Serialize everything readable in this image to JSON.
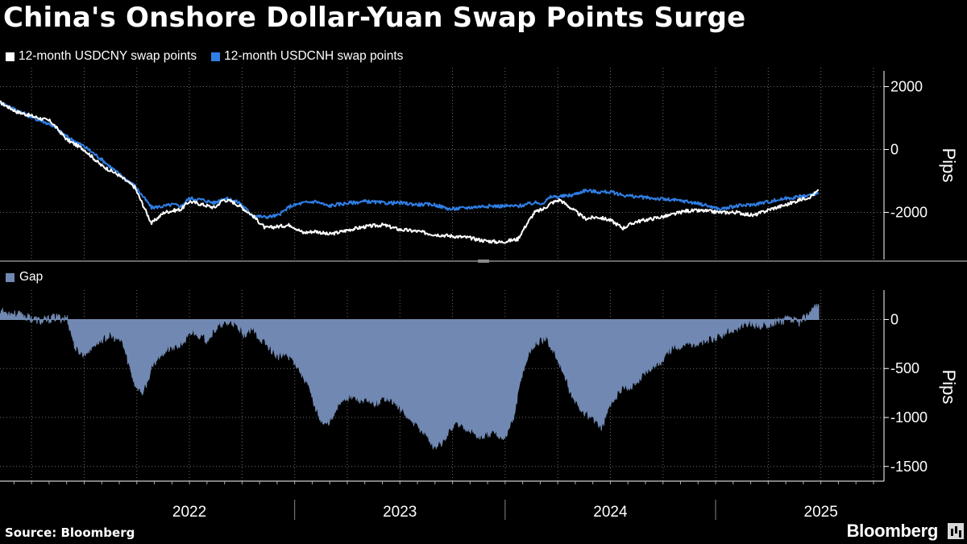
{
  "title": "China's Onshore Dollar-Yuan Swap Points Surge",
  "source": "Source: Bloomberg",
  "brand": "Bloomberg",
  "colors": {
    "cny": "#ffffff",
    "cnh": "#2f7fe6",
    "gap": "#7189b2",
    "grid": "#6e6e6e",
    "background": "#000000"
  },
  "chart_data": [
    {
      "type": "line",
      "title": "China's Onshore Dollar-Yuan Swap Points Surge",
      "ylabel": "Pips",
      "ylim": [
        -3500,
        2500
      ],
      "yticks": [
        2000,
        0,
        -2000
      ],
      "ytick_labels": [
        "2000",
        "0",
        "-2000"
      ],
      "x_label_years": [
        "2022",
        "2023",
        "2024",
        "2025"
      ],
      "x_range": [
        2021.6,
        2025.8
      ],
      "legend": [
        "12-month USDCNY swap points",
        "12-month USDCNH swap points"
      ],
      "series": [
        {
          "name": "12-month USDCNY swap points",
          "x": [
            2021.6,
            2021.68,
            2021.76,
            2021.84,
            2021.92,
            2022.0,
            2022.08,
            2022.16,
            2022.24,
            2022.32,
            2022.38,
            2022.42,
            2022.46,
            2022.5,
            2022.56,
            2022.62,
            2022.66,
            2022.7,
            2022.74,
            2022.8,
            2022.86,
            2022.92,
            2022.98,
            2023.04,
            2023.1,
            2023.16,
            2023.2,
            2023.26,
            2023.34,
            2023.42,
            2023.5,
            2023.58,
            2023.66,
            2023.74,
            2023.82,
            2023.9,
            2023.98,
            2024.06,
            2024.1,
            2024.14,
            2024.18,
            2024.22,
            2024.26,
            2024.32,
            2024.38,
            2024.44,
            2024.5,
            2024.56,
            2024.62,
            2024.7,
            2024.78,
            2024.86,
            2024.94,
            2025.02,
            2025.1,
            2025.18,
            2025.26,
            2025.34,
            2025.4,
            2025.45,
            2025.49
          ],
          "values": [
            1500,
            1200,
            1050,
            900,
            300,
            0,
            -500,
            -800,
            -1200,
            -2350,
            -2000,
            -1950,
            -1900,
            -1650,
            -1750,
            -1850,
            -1600,
            -1650,
            -1800,
            -2100,
            -2500,
            -2450,
            -2400,
            -2650,
            -2600,
            -2700,
            -2650,
            -2550,
            -2450,
            -2400,
            -2550,
            -2600,
            -2700,
            -2750,
            -2800,
            -2900,
            -2950,
            -2850,
            -2400,
            -2000,
            -1900,
            -1700,
            -1600,
            -1900,
            -2200,
            -2150,
            -2250,
            -2500,
            -2300,
            -2200,
            -2100,
            -1950,
            -1950,
            -2000,
            -2000,
            -2100,
            -1900,
            -1750,
            -1600,
            -1500,
            -1300
          ]
        },
        {
          "name": "12-month USDCNH swap points",
          "x": [
            2021.6,
            2021.68,
            2021.76,
            2021.84,
            2021.92,
            2022.0,
            2022.08,
            2022.16,
            2022.24,
            2022.32,
            2022.38,
            2022.42,
            2022.46,
            2022.5,
            2022.56,
            2022.62,
            2022.66,
            2022.7,
            2022.74,
            2022.8,
            2022.86,
            2022.92,
            2022.98,
            2023.04,
            2023.1,
            2023.16,
            2023.2,
            2023.26,
            2023.34,
            2023.42,
            2023.5,
            2023.58,
            2023.66,
            2023.74,
            2023.82,
            2023.9,
            2023.98,
            2024.06,
            2024.1,
            2024.14,
            2024.18,
            2024.22,
            2024.26,
            2024.32,
            2024.38,
            2024.44,
            2024.5,
            2024.56,
            2024.62,
            2024.7,
            2024.78,
            2024.86,
            2024.94,
            2025.02,
            2025.1,
            2025.18,
            2025.26,
            2025.34,
            2025.4,
            2025.45,
            2025.49
          ],
          "values": [
            1500,
            1250,
            1000,
            800,
            400,
            100,
            -300,
            -750,
            -1150,
            -1850,
            -1800,
            -1750,
            -1800,
            -1550,
            -1600,
            -1700,
            -1550,
            -1600,
            -1700,
            -2100,
            -2150,
            -2100,
            -1800,
            -1700,
            -1650,
            -1800,
            -1750,
            -1700,
            -1650,
            -1700,
            -1700,
            -1750,
            -1750,
            -1900,
            -1850,
            -1800,
            -1800,
            -1800,
            -1750,
            -1700,
            -1700,
            -1500,
            -1500,
            -1450,
            -1300,
            -1350,
            -1350,
            -1450,
            -1500,
            -1550,
            -1600,
            -1650,
            -1750,
            -1900,
            -1800,
            -1750,
            -1650,
            -1550,
            -1500,
            -1450,
            -1400
          ]
        }
      ]
    },
    {
      "type": "area",
      "ylabel": "Pips",
      "ylim": [
        -1650,
        300
      ],
      "yticks": [
        0,
        -500,
        -1000,
        -1500
      ],
      "ytick_labels": [
        "0",
        "-500",
        "-1000",
        "-1500"
      ],
      "x_range": [
        2021.6,
        2025.8
      ],
      "legend": [
        "Gap"
      ],
      "series": [
        {
          "name": "Gap",
          "x": [
            2021.6,
            2021.7,
            2021.8,
            2021.86,
            2021.92,
            2021.96,
            2022.0,
            2022.06,
            2022.12,
            2022.18,
            2022.24,
            2022.28,
            2022.32,
            2022.36,
            2022.4,
            2022.46,
            2022.52,
            2022.58,
            2022.64,
            2022.7,
            2022.76,
            2022.8,
            2022.84,
            2022.88,
            2022.92,
            2022.96,
            2023.0,
            2023.06,
            2023.1,
            2023.14,
            2023.18,
            2023.22,
            2023.26,
            2023.32,
            2023.38,
            2023.44,
            2023.5,
            2023.56,
            2023.62,
            2023.66,
            2023.7,
            2023.76,
            2023.82,
            2023.88,
            2023.94,
            2024.0,
            2024.04,
            2024.08,
            2024.12,
            2024.16,
            2024.2,
            2024.26,
            2024.32,
            2024.38,
            2024.42,
            2024.46,
            2024.5,
            2024.56,
            2024.62,
            2024.68,
            2024.74,
            2024.8,
            2024.86,
            2024.92,
            2024.98,
            2025.04,
            2025.1,
            2025.16,
            2025.22,
            2025.28,
            2025.34,
            2025.4,
            2025.44,
            2025.47,
            2025.49
          ],
          "values": [
            80,
            40,
            -20,
            20,
            10,
            -300,
            -350,
            -230,
            -160,
            -220,
            -650,
            -750,
            -500,
            -350,
            -300,
            -250,
            -120,
            -200,
            -60,
            -20,
            -150,
            -100,
            -200,
            -280,
            -380,
            -350,
            -420,
            -650,
            -900,
            -1080,
            -1000,
            -820,
            -780,
            -820,
            -860,
            -780,
            -900,
            -1050,
            -1150,
            -1300,
            -1250,
            -1050,
            -1100,
            -1200,
            -1150,
            -1200,
            -1000,
            -550,
            -300,
            -220,
            -200,
            -450,
            -800,
            -960,
            -1000,
            -1100,
            -850,
            -700,
            -650,
            -500,
            -420,
            -280,
            -240,
            -240,
            -200,
            -150,
            -80,
            -40,
            -60,
            -30,
            0,
            -30,
            50,
            120,
            140
          ]
        }
      ]
    }
  ]
}
